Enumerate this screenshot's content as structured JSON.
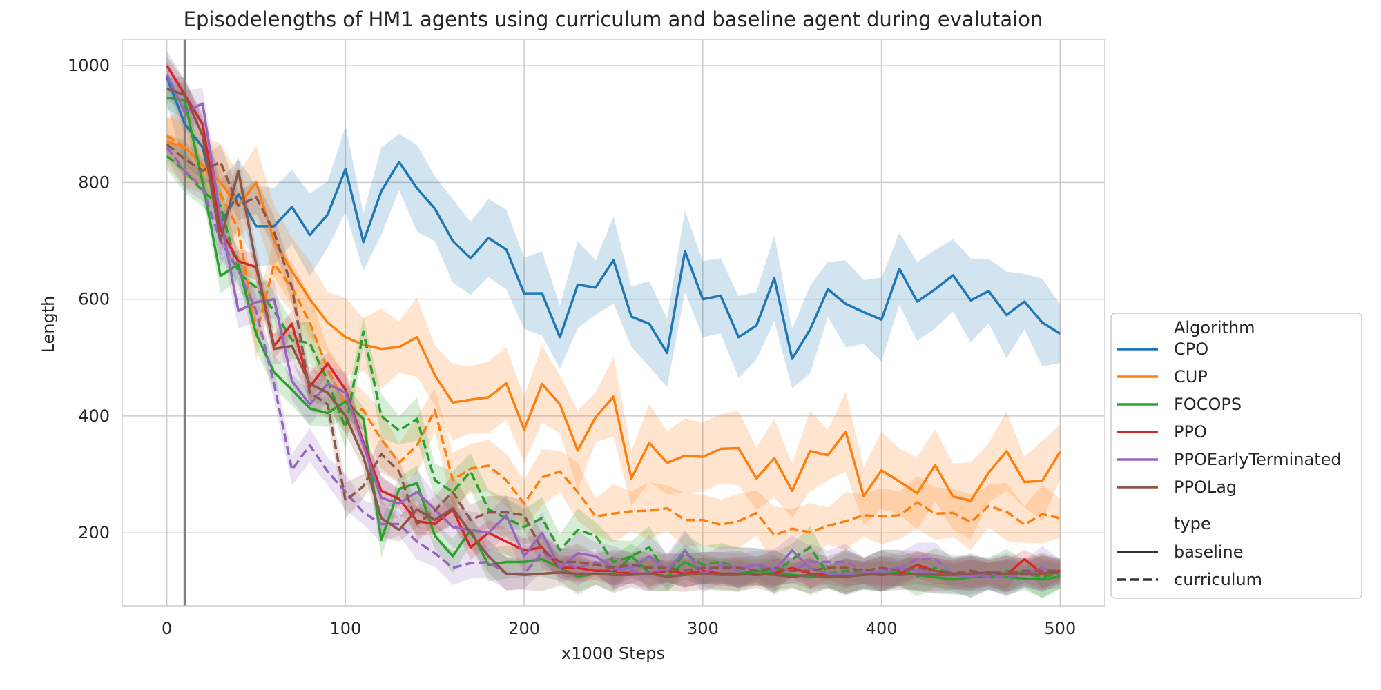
{
  "chart_data": {
    "type": "line",
    "title": "Episodelengths of HM1 agents using curriculum and baseline agent during evalutaion",
    "xlabel": "x1000 Steps",
    "ylabel": "Length",
    "xlim": [
      -25,
      525
    ],
    "ylim": [
      75,
      1045
    ],
    "xticks": [
      0,
      100,
      200,
      300,
      400,
      500
    ],
    "yticks": [
      200,
      400,
      600,
      800,
      1000
    ],
    "grid": true,
    "vertical_marker_x": 10,
    "legend": {
      "placement": "center-right outside",
      "algorithm_title": "Algorithm",
      "type_title": "type",
      "type_entries": [
        {
          "label": "baseline",
          "dash": "solid"
        },
        {
          "label": "curriculum",
          "dash": "dashed"
        }
      ]
    },
    "x": [
      0,
      10,
      20,
      30,
      40,
      50,
      60,
      70,
      80,
      90,
      100,
      110,
      120,
      130,
      140,
      150,
      160,
      170,
      180,
      190,
      200,
      210,
      220,
      230,
      240,
      250,
      260,
      270,
      280,
      290,
      300,
      310,
      320,
      330,
      340,
      350,
      360,
      370,
      380,
      390,
      400,
      410,
      420,
      430,
      440,
      450,
      460,
      470,
      480,
      490,
      500
    ],
    "series": [
      {
        "name": "CPO",
        "type": "baseline",
        "color": "#1f77b4",
        "values": [
          980,
          900,
          860,
          730,
          780,
          725,
          725,
          758,
          710,
          745,
          823,
          698,
          785,
          835,
          790,
          755,
          700,
          670,
          705,
          685,
          610,
          610,
          535,
          625,
          620,
          667,
          570,
          558,
          508,
          682,
          600,
          606,
          535,
          555,
          636,
          498,
          548,
          617,
          592,
          578,
          565,
          652,
          596,
          617,
          641,
          598,
          614,
          573,
          596,
          560,
          541
        ],
        "band": 60
      },
      {
        "name": "CUP",
        "type": "baseline",
        "color": "#ff7f0e",
        "values": [
          870,
          860,
          830,
          800,
          760,
          800,
          700,
          648,
          600,
          560,
          535,
          522,
          515,
          518,
          535,
          470,
          423,
          428,
          432,
          456,
          377,
          455,
          420,
          341,
          398,
          433,
          293,
          354,
          320,
          332,
          330,
          344,
          345,
          293,
          328,
          272,
          340,
          333,
          373,
          263,
          307,
          288,
          268,
          316,
          262,
          255,
          303,
          340,
          287,
          289,
          339
        ],
        "band": 55
      },
      {
        "name": "CUP",
        "type": "curriculum",
        "color": "#ff7f0e",
        "values": [
          880,
          860,
          830,
          780,
          720,
          540,
          660,
          620,
          560,
          480,
          420,
          410,
          360,
          320,
          350,
          410,
          290,
          310,
          315,
          290,
          250,
          295,
          305,
          270,
          228,
          233,
          237,
          238,
          242,
          222,
          222,
          214,
          220,
          234,
          196,
          207,
          201,
          212,
          220,
          230,
          228,
          230,
          252,
          233,
          234,
          218,
          246,
          236,
          214,
          232,
          225
        ],
        "band": 40
      },
      {
        "name": "FOCOPS",
        "type": "baseline",
        "color": "#2ca02c",
        "values": [
          945,
          940,
          800,
          640,
          660,
          540,
          475,
          445,
          413,
          405,
          425,
          395,
          188,
          275,
          285,
          195,
          160,
          205,
          145,
          150,
          150,
          155,
          140,
          125,
          130,
          130,
          160,
          132,
          125,
          150,
          135,
          130,
          130,
          135,
          132,
          128,
          125,
          124,
          126,
          128,
          130,
          132,
          128,
          124,
          120,
          124,
          126,
          124,
          122,
          120,
          125
        ],
        "band": 25
      },
      {
        "name": "FOCOPS",
        "type": "curriculum",
        "color": "#2ca02c",
        "values": [
          845,
          820,
          785,
          760,
          645,
          620,
          580,
          530,
          525,
          460,
          380,
          545,
          400,
          375,
          395,
          290,
          270,
          305,
          240,
          225,
          210,
          225,
          170,
          205,
          195,
          150,
          160,
          175,
          130,
          165,
          145,
          150,
          140,
          145,
          130,
          155,
          175,
          130,
          135,
          130,
          135,
          140,
          125,
          140,
          130,
          125,
          130,
          135,
          130,
          125,
          130
        ],
        "band": 30
      },
      {
        "name": "PPO",
        "type": "baseline",
        "color": "#d62728",
        "values": [
          1000,
          950,
          900,
          720,
          665,
          655,
          520,
          558,
          450,
          490,
          445,
          355,
          272,
          258,
          220,
          215,
          240,
          175,
          200,
          185,
          170,
          175,
          140,
          140,
          135,
          135,
          130,
          130,
          135,
          130,
          135,
          130,
          130,
          128,
          130,
          140,
          130,
          128,
          130,
          130,
          128,
          130,
          145,
          135,
          130,
          130,
          130,
          128,
          155,
          130,
          135
        ],
        "band": 20
      },
      {
        "name": "PPOEarlyTerminated",
        "type": "baseline",
        "color": "#9467bd",
        "values": [
          985,
          920,
          935,
          740,
          580,
          595,
          600,
          460,
          420,
          455,
          440,
          350,
          260,
          250,
          270,
          240,
          210,
          205,
          200,
          230,
          160,
          200,
          140,
          165,
          160,
          140,
          140,
          160,
          135,
          170,
          130,
          145,
          140,
          145,
          135,
          170,
          140,
          130,
          130,
          130,
          135,
          140,
          135,
          130,
          128,
          125,
          130,
          128,
          130,
          140,
          130
        ],
        "band": 30
      },
      {
        "name": "PPOEarlyTerminated",
        "type": "curriculum",
        "color": "#9467bd",
        "values": [
          860,
          820,
          790,
          700,
          650,
          580,
          455,
          308,
          350,
          305,
          270,
          235,
          215,
          215,
          185,
          165,
          140,
          148,
          150,
          130,
          130,
          165,
          150,
          140,
          150,
          135,
          135,
          130,
          140,
          135,
          140,
          140,
          135,
          145,
          140,
          135,
          150,
          150,
          150,
          135,
          130,
          140,
          155,
          155,
          130,
          130,
          125,
          125,
          128,
          130,
          135
        ],
        "band": 25
      },
      {
        "name": "PPOLag",
        "type": "baseline",
        "color": "#8c564b",
        "values": [
          960,
          950,
          880,
          700,
          820,
          660,
          515,
          520,
          455,
          440,
          400,
          330,
          225,
          205,
          240,
          222,
          242,
          200,
          160,
          130,
          128,
          130,
          132,
          130,
          130,
          128,
          128,
          130,
          125,
          128,
          130,
          128,
          128,
          130,
          128,
          125,
          128,
          125,
          125,
          128,
          130,
          128,
          130,
          128,
          128,
          130,
          132,
          130,
          130,
          130,
          132
        ],
        "band": 25
      },
      {
        "name": "PPOLag",
        "type": "curriculum",
        "color": "#8c564b",
        "values": [
          865,
          840,
          820,
          835,
          760,
          775,
          715,
          620,
          440,
          420,
          255,
          280,
          335,
          305,
          215,
          238,
          270,
          222,
          235,
          235,
          230,
          170,
          150,
          150,
          145,
          140,
          145,
          140,
          140,
          135,
          140,
          140,
          140,
          135,
          140,
          135,
          135,
          140,
          140,
          135,
          140,
          135,
          140,
          135,
          130,
          135,
          130,
          130,
          135,
          135,
          135
        ],
        "band": 25
      }
    ]
  }
}
